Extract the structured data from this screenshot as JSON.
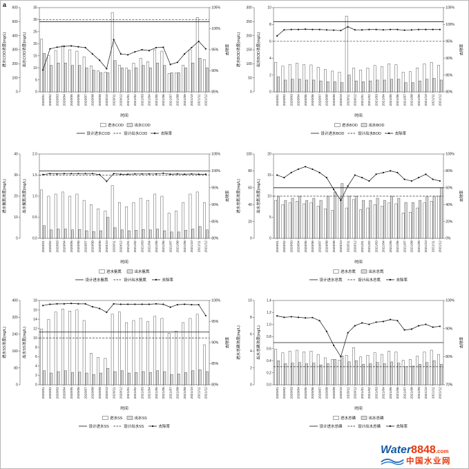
{
  "figure_label": "a",
  "xlabel": "时间",
  "watermark": {
    "water": "Water",
    "number": "8848",
    "com": ".com",
    "site": "中国水业网",
    "water_color": "#1359a4",
    "number_color": "#e8380d",
    "site_color": "#e8380d",
    "wave_color": "#1a6fc4"
  },
  "chart_data": {
    "type": "bar+line",
    "legend_position": "bottom",
    "categories": [
      "2020/01",
      "2020/02",
      "2020/03",
      "2020/04",
      "2020/05",
      "2020/06",
      "2020/07",
      "2020/08",
      "2020/09",
      "2020/10",
      "2020/11",
      "2020/12",
      "2021/01",
      "2021/02",
      "2021/03",
      "2021/04",
      "2021/05",
      "2021/06",
      "2021/07",
      "2021/08",
      "2021/09",
      "2021/10",
      "2021/11",
      "2021/12"
    ],
    "charts": [
      {
        "name": "cod",
        "influent_axis": {
          "label": "进水COD浓度(mg/L)",
          "min": 0,
          "max": 600,
          "step": 100,
          "decimals": 0
        },
        "effluent_axis": {
          "label": "出水COD浓度(mg/L)",
          "min": 0,
          "max": 35,
          "step": 5,
          "decimals": 0
        },
        "removal_axis": {
          "label": "去除率",
          "min": 85,
          "max": 105,
          "step": 5
        },
        "design_influent": 500,
        "design_effluent": 30,
        "series": {
          "influent": [
            375,
            260,
            295,
            330,
            300,
            290,
            250,
            185,
            150,
            140,
            565,
            190,
            170,
            205,
            240,
            215,
            300,
            290,
            130,
            135,
            190,
            300,
            530,
            230
          ],
          "effluent": [
            16,
            11,
            12,
            12,
            11,
            11,
            10,
            9,
            8,
            8,
            13,
            10,
            9,
            10,
            11,
            10,
            12,
            11,
            8,
            8,
            10,
            12,
            14,
            10
          ],
          "removal": [
            90.2,
            95.2,
            95.6,
            95.8,
            95.9,
            95.7,
            95.5,
            94,
            92.5,
            90.5,
            97.4,
            94,
            93.8,
            94.5,
            95,
            94.8,
            95.5,
            95.6,
            91.5,
            92,
            94,
            95.5,
            97,
            95.2
          ]
        },
        "legend": {
          "influent": "进水COD",
          "effluent": "出水COD",
          "design_influent": "设计进水COD",
          "design_effluent": "设计出水COD",
          "removal": "去除率"
        }
      },
      {
        "name": "bod",
        "influent_axis": {
          "label": "进水BOD浓度(mg/L)",
          "min": 0,
          "max": 300,
          "step": 50,
          "decimals": 0
        },
        "effluent_axis": {
          "label": "出水BOD浓度(mg/L)",
          "min": 0,
          "max": 10,
          "step": 2,
          "decimals": 0
        },
        "removal_axis": {
          "label": "去除率",
          "min": 80,
          "max": 105,
          "step": 5
        },
        "design_influent": 250,
        "design_effluent": 6,
        "series": {
          "influent": [
            105,
            92,
            98,
            102,
            97,
            96,
            88,
            80,
            74,
            70,
            270,
            85,
            78,
            85,
            94,
            90,
            100,
            97,
            70,
            72,
            85,
            100,
            105,
            95
          ],
          "effluent": [
            1.8,
            1.4,
            1.5,
            1.5,
            1.4,
            1.4,
            1.3,
            1.2,
            1.2,
            1.1,
            2.0,
            1.3,
            1.2,
            1.3,
            1.4,
            1.4,
            1.5,
            1.5,
            1.1,
            1.1,
            1.3,
            1.5,
            1.6,
            1.4
          ],
          "removal": [
            96.6,
            98.4,
            98.5,
            98.5,
            98.6,
            98.5,
            98.5,
            98.4,
            98.3,
            98.2,
            99.3,
            98.4,
            98.4,
            98.5,
            98.5,
            98.4,
            98.5,
            98.5,
            98.3,
            98.4,
            98.5,
            98.5,
            98.5,
            98.5
          ]
        },
        "legend": {
          "influent": "进水BOD",
          "effluent": "出水BOD",
          "design_influent": "设计进水BOD",
          "design_effluent": "设计出水BOD",
          "removal": "去除率"
        }
      },
      {
        "name": "nh3n",
        "influent_axis": {
          "label": "进水氨氮浓度(mg/L)",
          "min": 0,
          "max": 40,
          "step": 10,
          "decimals": 0
        },
        "effluent_axis": {
          "label": "出水氨氮浓度(mg/L)",
          "min": 0,
          "max": 2,
          "step": 0.5,
          "decimals": 1
        },
        "removal_axis": {
          "label": "去除率",
          "min": 80,
          "max": 105,
          "step": 5
        },
        "design_influent": 32,
        "design_effluent": 1.5,
        "series": {
          "influent": [
            23,
            20,
            21,
            22,
            20,
            21,
            18,
            16,
            14,
            13,
            25,
            17,
            15,
            17,
            19,
            18,
            21,
            20,
            12,
            13,
            17,
            21,
            22,
            17
          ],
          "effluent": [
            0.3,
            0.2,
            0.22,
            0.22,
            0.2,
            0.21,
            0.18,
            0.16,
            0.18,
            0.5,
            0.25,
            0.2,
            0.18,
            0.19,
            0.21,
            0.2,
            0.22,
            0.18,
            0.15,
            0.15,
            0.19,
            0.22,
            0.28,
            0.2
          ],
          "removal": [
            98.9,
            99.2,
            99.1,
            99.2,
            99.2,
            99.2,
            99.2,
            99.2,
            98.9,
            96.9,
            99.2,
            99,
            99,
            99.1,
            99.1,
            99.1,
            99.1,
            99.3,
            99,
            99.1,
            99,
            99.1,
            99,
            99
          ]
        },
        "legend": {
          "influent": "进水氨氮",
          "effluent": "出水氨氮",
          "design_influent": "设计进水氨氮",
          "design_effluent": "设计出水氨氮",
          "removal": "去除率"
        }
      },
      {
        "name": "tn",
        "influent_axis": {
          "label": "进水总氮浓度(mg/L)",
          "min": 0,
          "max": 100,
          "step": 20,
          "decimals": 0
        },
        "effluent_axis": {
          "label": "出水总氮浓度(mg/L)",
          "min": 0,
          "max": 20,
          "step": 5,
          "decimals": 0
        },
        "removal_axis": {
          "label": "去除率",
          "min": 0,
          "max": 100,
          "step": 20
        },
        "design_influent": 60,
        "design_effluent": 10,
        "series": {
          "influent": [
            45,
            40,
            42,
            44,
            41,
            42,
            38,
            35,
            33,
            48,
            36,
            46,
            34,
            36,
            40,
            38,
            42,
            41,
            30,
            31,
            36,
            42,
            44,
            50
          ],
          "effluent": [
            10,
            9,
            9.5,
            10,
            9,
            9.5,
            9,
            10,
            11,
            13,
            10,
            10,
            9,
            9,
            9.5,
            9,
            10,
            9.5,
            8.5,
            8.5,
            9,
            10,
            10,
            12
          ],
          "removal": [
            75,
            72,
            78,
            82,
            85,
            82,
            78,
            72,
            58,
            45,
            62,
            75,
            72,
            68,
            76,
            78,
            80,
            78,
            70,
            68,
            72,
            76,
            70,
            68
          ]
        },
        "legend": {
          "influent": "进水总氮",
          "effluent": "出水总氮",
          "design_influent": "设计进水总氮",
          "design_effluent": "设计出水总氮",
          "removal": "去除率"
        }
      },
      {
        "name": "ss",
        "influent_axis": {
          "label": "进水SS浓度(mg/L)",
          "min": 0,
          "max": 400,
          "step": 80,
          "decimals": 0
        },
        "effluent_axis": {
          "label": "出水SS浓度(mg/L)",
          "min": 0,
          "max": 18,
          "step": 2,
          "decimals": 0
        },
        "removal_axis": {
          "label": "去除率",
          "min": 80,
          "max": 100,
          "step": 5
        },
        "design_influent": 250,
        "design_effluent": 10,
        "series": {
          "influent": [
            265,
            310,
            345,
            360,
            350,
            355,
            305,
            150,
            130,
            125,
            335,
            345,
            295,
            305,
            315,
            300,
            325,
            315,
            245,
            255,
            295,
            315,
            335,
            190
          ],
          "effluent": [
            3,
            2.5,
            2.8,
            3,
            2.6,
            2.7,
            2.5,
            2.2,
            2.5,
            3.5,
            2.8,
            3,
            2.5,
            2.6,
            2.8,
            2.6,
            3,
            2.8,
            2.2,
            2.3,
            2.6,
            3,
            3.2,
            2.8
          ],
          "removal": [
            98.8,
            99.1,
            99.2,
            99.2,
            99.3,
            99.2,
            99.2,
            98.5,
            98.1,
            97.2,
            99.2,
            99.1,
            99.1,
            99.1,
            99.1,
            99.1,
            99.2,
            99.1,
            98.4,
            99,
            99.1,
            99,
            99,
            96.4
          ]
        },
        "legend": {
          "influent": "进水SS",
          "effluent": "出水SS",
          "design_influent": "设计进水SS",
          "design_effluent": "设计出水SS",
          "removal": "去除率"
        }
      },
      {
        "name": "tp",
        "influent_axis": {
          "label": "进水总磷浓度(mg/L)",
          "min": 0,
          "max": 10,
          "step": 2,
          "decimals": 0
        },
        "effluent_axis": {
          "label": "出水总磷浓度(mg/L)",
          "min": 0,
          "max": 1.4,
          "step": 0.2,
          "decimals": 1
        },
        "removal_axis": {
          "label": "去除率",
          "min": 70,
          "max": 100,
          "step": 10
        },
        "design_influent": 5,
        "design_effluent": 0.3,
        "series": {
          "influent": [
            4.2,
            3.8,
            4.0,
            4.1,
            3.9,
            4.0,
            3.6,
            3.2,
            3.0,
            2.9,
            3.5,
            4.4,
            3.3,
            3.5,
            3.8,
            3.6,
            4.0,
            3.9,
            2.9,
            3.0,
            3.4,
            3.9,
            4.1,
            3.6
          ],
          "effluent": [
            0.4,
            0.35,
            0.36,
            0.37,
            0.35,
            0.36,
            0.33,
            0.35,
            0.42,
            0.48,
            0.38,
            0.4,
            0.34,
            0.35,
            0.37,
            0.35,
            0.38,
            0.36,
            0.3,
            0.31,
            0.34,
            0.37,
            0.4,
            0.34
          ],
          "removal": [
            94.5,
            94,
            94.2,
            94,
            93.8,
            93.9,
            92.8,
            89,
            84,
            80,
            88.5,
            91,
            92,
            91.5,
            92.3,
            92.5,
            93.2,
            92.8,
            89.5,
            89.8,
            91,
            91.5,
            90.5,
            90.8
          ]
        },
        "legend": {
          "influent": "进水总磷",
          "effluent": "出水总磷",
          "design_influent": "设计进水总磷",
          "design_effluent": "设计出水总磷",
          "removal": "去除率"
        }
      }
    ]
  }
}
